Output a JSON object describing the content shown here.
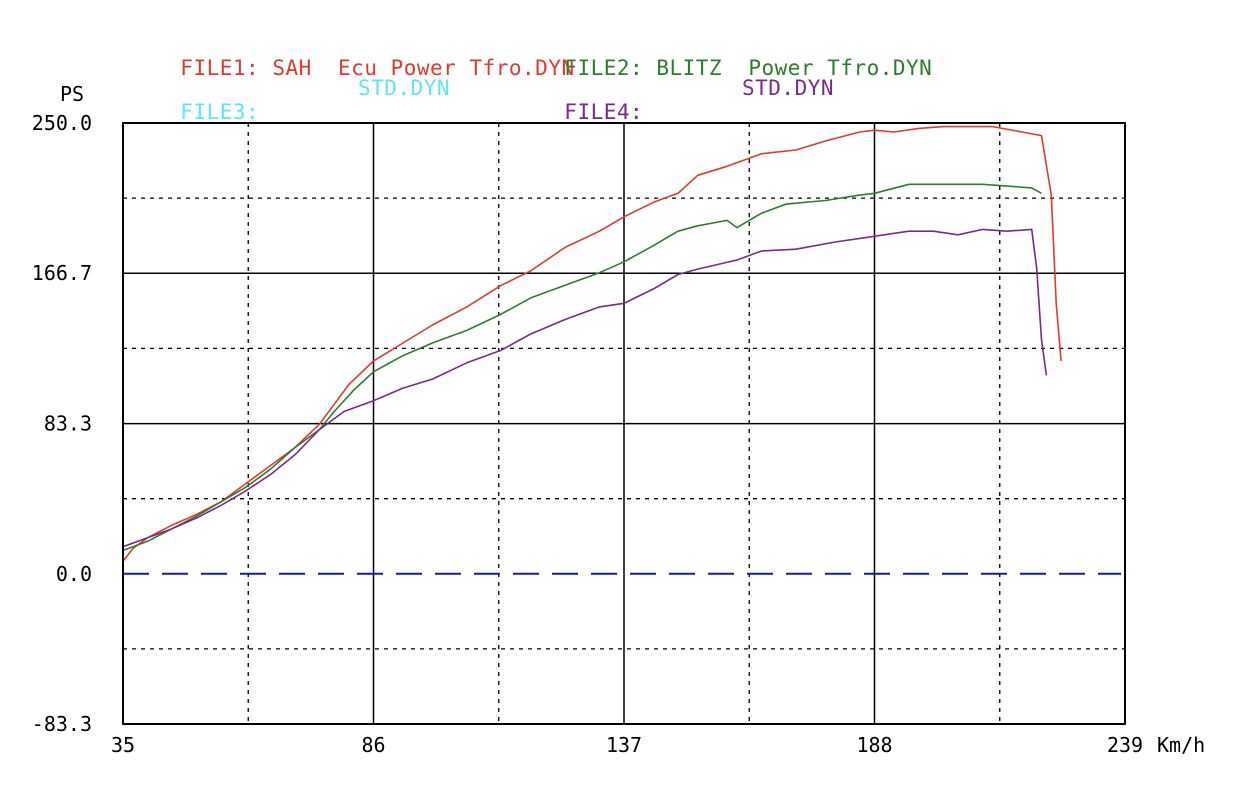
{
  "legend": [
    {
      "id": "file1",
      "label": "FILE1:",
      "name": "SAH  Ecu Power Tfro.DYN",
      "color": "#e03a2e"
    },
    {
      "id": "file2",
      "label": "FILE2:",
      "name": "BLITZ  Power Tfro.DYN",
      "color": "#2e7d2e"
    },
    {
      "id": "file3",
      "label": "FILE3:",
      "name": "STD.DYN",
      "color": "#5ee6f2"
    },
    {
      "id": "file4",
      "label": "FILE4:",
      "name": "STD.DYN",
      "color": "#7a2a8a"
    }
  ],
  "chart_data": {
    "type": "line",
    "ylabel": "PS",
    "xlabel": "Km/h",
    "xlim": [
      35,
      239
    ],
    "ylim": [
      -83.3,
      250.0
    ],
    "x_ticks": [
      35,
      86,
      137,
      188,
      239
    ],
    "y_ticks": [
      -83.3,
      0.0,
      83.3,
      166.7,
      250.0
    ],
    "y_tick_labels": [
      "-83.3",
      "0.0",
      "83.3",
      "166.7",
      "250.0"
    ],
    "grid": true,
    "zero_line_color": "#1a1aa0",
    "series": [
      {
        "name": "SAH  Ecu Power Tfro.DYN",
        "color": "#e03a2e",
        "x": [
          35,
          37,
          40,
          45,
          50,
          55,
          60,
          65,
          70,
          75,
          78,
          81,
          86,
          92,
          98,
          105,
          112,
          118,
          125,
          132,
          137,
          143,
          148,
          152,
          158,
          165,
          172,
          178,
          185,
          188,
          192,
          197,
          202,
          207,
          212,
          218,
          222,
          224,
          225,
          226
        ],
        "y": [
          7,
          14,
          20,
          27,
          33,
          40,
          50,
          60,
          70,
          83,
          94,
          105,
          118,
          128,
          138,
          148,
          160,
          168,
          181,
          190,
          198,
          206,
          211,
          221,
          226,
          233,
          235,
          240,
          245,
          246,
          245,
          247,
          248,
          248,
          248,
          245,
          243,
          210,
          150,
          118
        ]
      },
      {
        "name": "BLITZ  Power Tfro.DYN",
        "color": "#2e7d2e",
        "x": [
          35,
          40,
          45,
          50,
          55,
          60,
          65,
          70,
          75,
          78,
          82,
          86,
          92,
          98,
          105,
          112,
          118,
          125,
          132,
          137,
          143,
          148,
          152,
          158,
          160,
          165,
          170,
          178,
          185,
          188,
          195,
          200,
          205,
          210,
          215,
          220,
          222
        ],
        "y": [
          13,
          18,
          25,
          32,
          40,
          48,
          58,
          70,
          80,
          90,
          102,
          112,
          121,
          128,
          135,
          144,
          153,
          160,
          167,
          173,
          182,
          190,
          193,
          196,
          192,
          200,
          205,
          207,
          210,
          211,
          216,
          216,
          216,
          216,
          215,
          214,
          211
        ]
      },
      {
        "name": "STD.DYN",
        "color": "#7a2a8a",
        "x": [
          35,
          40,
          45,
          50,
          55,
          60,
          65,
          70,
          75,
          80,
          86,
          92,
          98,
          105,
          112,
          118,
          125,
          132,
          137,
          143,
          148,
          152,
          160,
          165,
          172,
          180,
          185,
          190,
          195,
          200,
          205,
          210,
          215,
          220,
          221,
          222,
          223
        ],
        "y": [
          15,
          20,
          25,
          31,
          38,
          46,
          55,
          66,
          80,
          90,
          96,
          103,
          108,
          117,
          124,
          133,
          141,
          148,
          150,
          158,
          166,
          169,
          174,
          179,
          180,
          184,
          186,
          188,
          190,
          190,
          188,
          191,
          190,
          191,
          170,
          130,
          110
        ]
      }
    ]
  }
}
